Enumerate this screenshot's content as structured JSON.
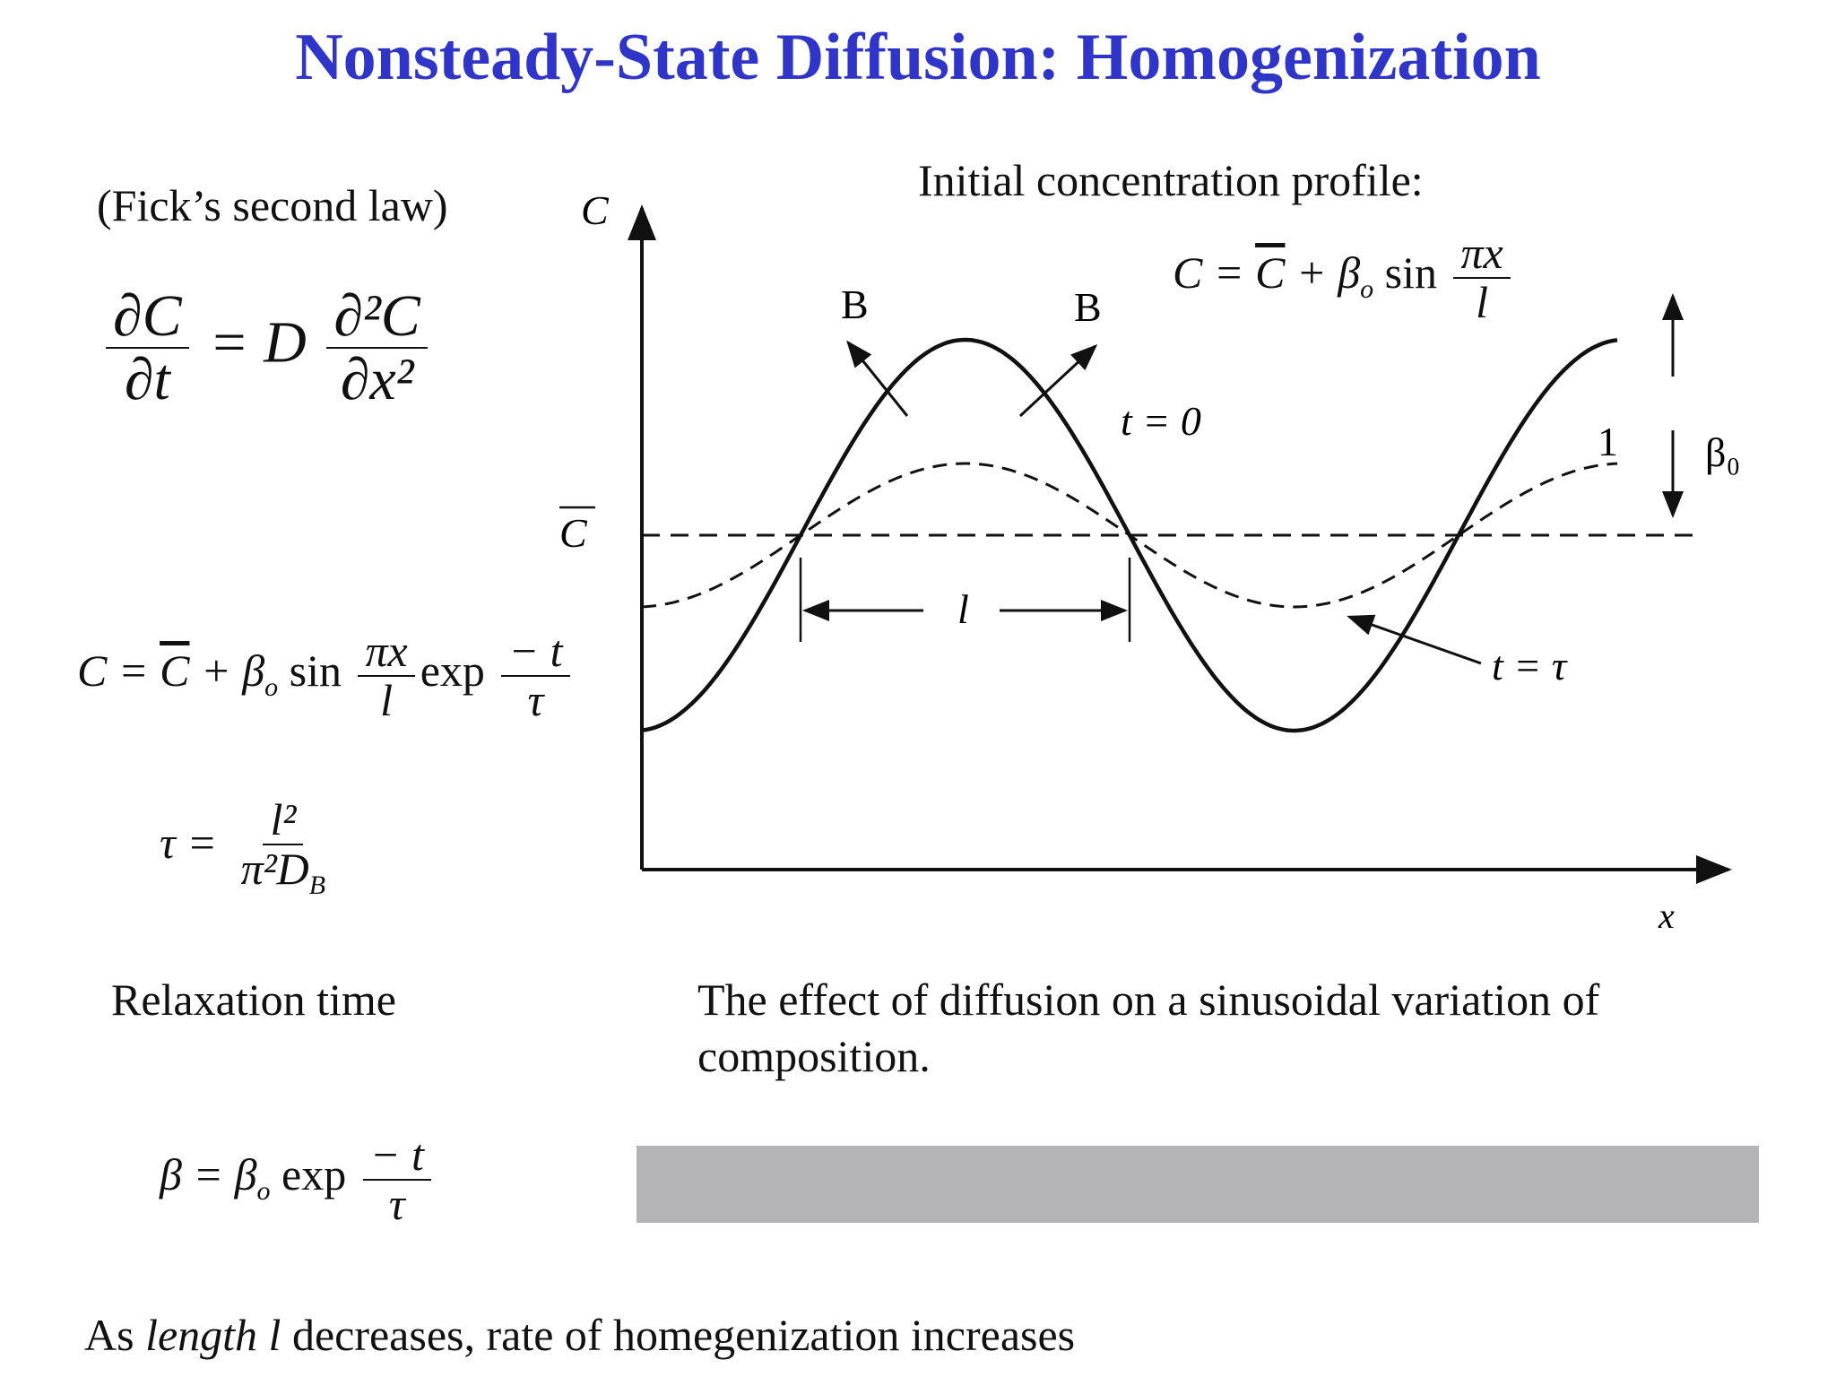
{
  "title": "Nonsteady-State Diffusion: Homogenization",
  "left": {
    "law_label": "(Fick’s second law)",
    "fick": {
      "lhs_num": "∂C",
      "lhs_den": "∂t",
      "eq_d": "= D",
      "rhs_num": "∂²C",
      "rhs_den": "∂x²"
    },
    "solution": {
      "lhs": "C = ",
      "cbar": "C",
      "plus_beta": " + β",
      "beta_sub": "o",
      "sin": " sin",
      "frac1_num": "πx",
      "frac1_den": "l",
      "exp": "exp",
      "frac2_num": "− t",
      "frac2_den": "τ"
    },
    "tau": {
      "lhs": "τ =",
      "num": "l²",
      "den_main": "π²D",
      "den_sub": "B"
    },
    "relaxation_label": "Relaxation time",
    "beta_eq": {
      "lhs": "β = β",
      "lhs_sub": "o",
      "exp": " exp",
      "num": "− t",
      "den": "τ"
    }
  },
  "diagram": {
    "header": "Initial concentration profile:",
    "profile_eq": {
      "lhs": "C = ",
      "cbar": "C",
      "plus_beta": " + β",
      "beta_sub": "o",
      "sin": " sin",
      "num": "πx",
      "den": "l"
    },
    "y_axis_label": "C",
    "x_axis_label": "x",
    "cbar_label": "C",
    "label_B_left": "B",
    "label_B_right": "B",
    "label_t0": "t = 0",
    "label_l_dim": "l",
    "label_1": "1",
    "label_beta0": "β₀",
    "label_ttau": "t = τ",
    "caption": [
      "The effect of diffusion on a sinusoidal variation of",
      "composition."
    ]
  },
  "footer": {
    "prefix": "As ",
    "italic": "length  l",
    "suffix": " decreases, rate of homegenization increases"
  },
  "colors": {
    "title": "#2f35c8",
    "bar": "#b4b3b5"
  }
}
